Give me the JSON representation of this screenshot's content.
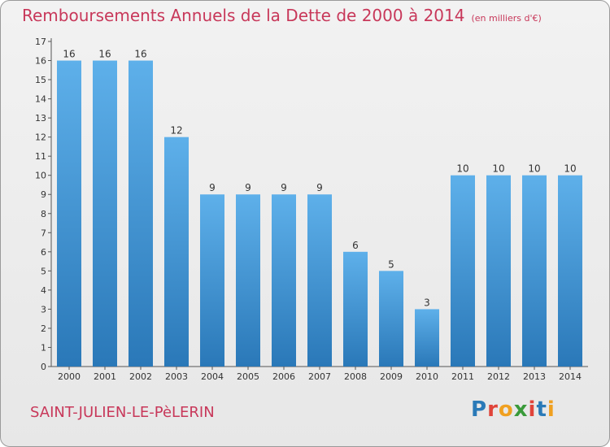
{
  "title": "Remboursements Annuels de la Dette de 2000 à 2014",
  "unit_note": "(en milliers d'€)",
  "commune": "SAINT-JULIEN-LE-PèLERIN",
  "logo_text": "Proxiti",
  "colors": {
    "title": "#c8385a",
    "bar_light": "#5eb0ea",
    "bar_dark": "#2a78b8"
  },
  "chart_data": {
    "type": "bar",
    "categories": [
      "2000",
      "2001",
      "2002",
      "2003",
      "2004",
      "2005",
      "2006",
      "2007",
      "2008",
      "2009",
      "2010",
      "2011",
      "2012",
      "2013",
      "2014"
    ],
    "values": [
      16,
      16,
      16,
      12,
      9,
      9,
      9,
      9,
      6,
      5,
      3,
      10,
      10,
      10,
      10
    ],
    "ylim": [
      0,
      17
    ],
    "yticks": [
      0,
      1,
      2,
      3,
      4,
      5,
      6,
      7,
      8,
      9,
      10,
      11,
      12,
      13,
      14,
      15,
      16,
      17
    ],
    "title": "Remboursements Annuels de la Dette de 2000 à 2014",
    "xlabel": "",
    "ylabel": "",
    "grid": false,
    "data_labels": true
  }
}
